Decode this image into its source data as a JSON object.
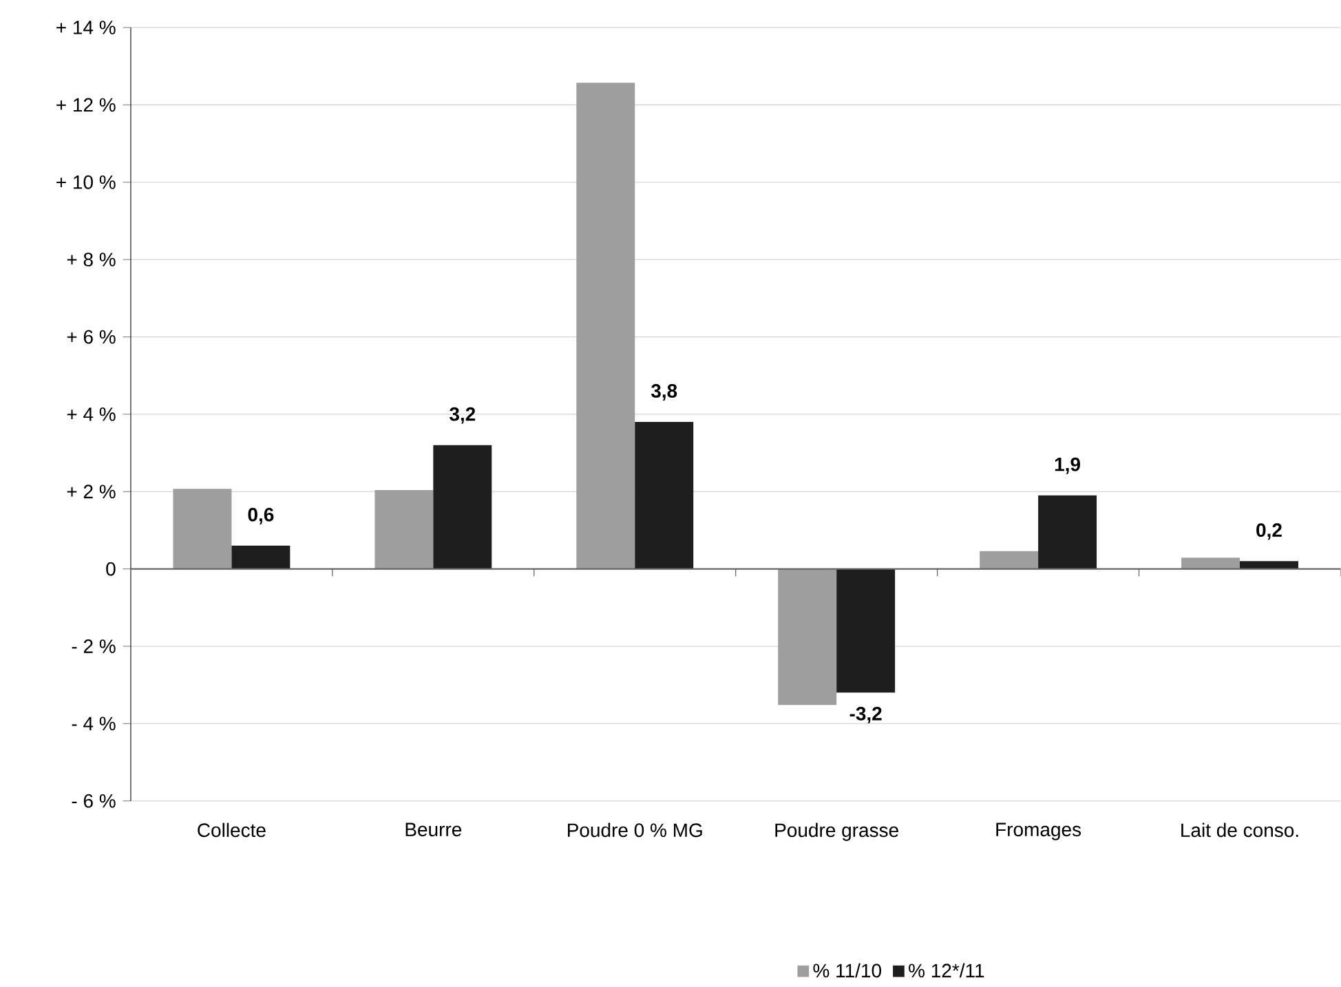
{
  "chart_data": {
    "type": "bar",
    "categories": [
      "Collecte",
      "Beurre",
      "Poudre 0 % MG",
      "Poudre grasse",
      "Fromages",
      "Lait de conso."
    ],
    "series": [
      {
        "name": "% 11/10",
        "color": "#9e9e9e",
        "values": [
          2.07,
          2.04,
          12.57,
          -3.52,
          0.46,
          0.29
        ]
      },
      {
        "name": "% 12*/11",
        "color": "#1e1e1e",
        "values": [
          0.6,
          3.2,
          3.8,
          -3.2,
          1.9,
          0.2
        ],
        "value_labels": [
          "0,6",
          "3,2",
          "3,8",
          "-3,2",
          "1,9",
          "0,2"
        ]
      }
    ],
    "ylim": [
      -6,
      14
    ],
    "yticks": [
      {
        "value": -6,
        "label": "- 6 %"
      },
      {
        "value": -4,
        "label": "- 4 %"
      },
      {
        "value": -2,
        "label": "- 2 %"
      },
      {
        "value": 0,
        "label": "0"
      },
      {
        "value": 2,
        "label": "+ 2 %"
      },
      {
        "value": 4,
        "label": "+ 4 %"
      },
      {
        "value": 6,
        "label": "+ 6 %"
      },
      {
        "value": 8,
        "label": "+ 8 %"
      },
      {
        "value": 10,
        "label": "+ 10 %"
      },
      {
        "value": 12,
        "label": "+ 12 %"
      },
      {
        "value": 14,
        "label": "+ 14 %"
      }
    ],
    "grid": "y",
    "legend": "bottom"
  }
}
